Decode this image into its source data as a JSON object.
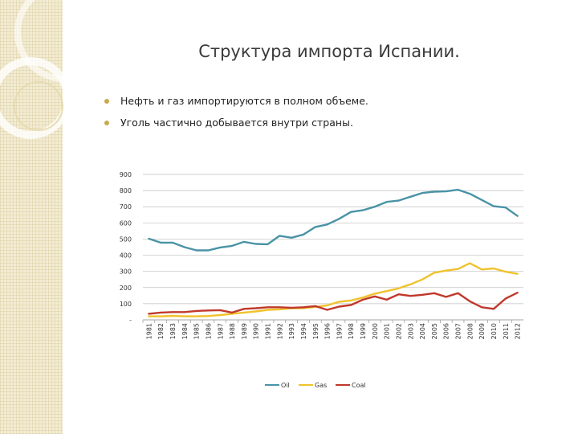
{
  "slide": {
    "title": "Структура импорта Испании.",
    "bullets": [
      "Нефть и газ импортируются в полном объеме.",
      "Уголь частично добывается внутри страны."
    ]
  },
  "colors": {
    "oil": "#4a93a6",
    "gas": "#f0c22c",
    "coal": "#c0392b",
    "grid": "#bfbfbf",
    "axis": "#888888",
    "side_panel": "#f3ecd3",
    "bullet": "#c9a94a"
  },
  "chart_data": {
    "type": "line",
    "title": "",
    "xlabel": "",
    "ylabel": "",
    "ylim": [
      0,
      900
    ],
    "y_ticks": [
      0,
      100,
      200,
      300,
      400,
      500,
      600,
      700,
      800,
      900
    ],
    "y_tick_labels": [
      "-",
      "100",
      "200",
      "300",
      "400",
      "500",
      "600",
      "700",
      "800",
      "900"
    ],
    "grid": true,
    "legend_position": "bottom",
    "categories": [
      "1981",
      "1982",
      "1983",
      "1984",
      "1985",
      "1986",
      "1987",
      "1988",
      "1989",
      "1990",
      "1991",
      "1992",
      "1993",
      "1994",
      "1995",
      "1996",
      "1997",
      "1998",
      "1999",
      "2000",
      "2001",
      "2002",
      "2003",
      "2004",
      "2005",
      "2006",
      "2007",
      "2008",
      "2009",
      "2010",
      "2011",
      "2012"
    ],
    "series": [
      {
        "name": "Oil",
        "color_key": "oil",
        "values": [
          502,
          478,
          478,
          450,
          430,
          430,
          448,
          458,
          483,
          470,
          468,
          520,
          508,
          528,
          575,
          590,
          625,
          668,
          678,
          700,
          730,
          738,
          762,
          785,
          793,
          795,
          805,
          780,
          742,
          703,
          695,
          643
        ]
      },
      {
        "name": "Gas",
        "color_key": "gas",
        "values": [
          22,
          22,
          25,
          22,
          22,
          24,
          30,
          38,
          45,
          52,
          62,
          65,
          72,
          72,
          80,
          90,
          112,
          120,
          138,
          162,
          178,
          195,
          220,
          250,
          292,
          305,
          315,
          350,
          312,
          318,
          298,
          285
        ]
      },
      {
        "name": "Coal",
        "color_key": "coal",
        "values": [
          38,
          45,
          48,
          48,
          55,
          58,
          60,
          45,
          68,
          72,
          78,
          78,
          75,
          78,
          85,
          62,
          82,
          92,
          125,
          145,
          125,
          158,
          148,
          155,
          165,
          142,
          165,
          115,
          78,
          68,
          132,
          168
        ]
      }
    ]
  }
}
